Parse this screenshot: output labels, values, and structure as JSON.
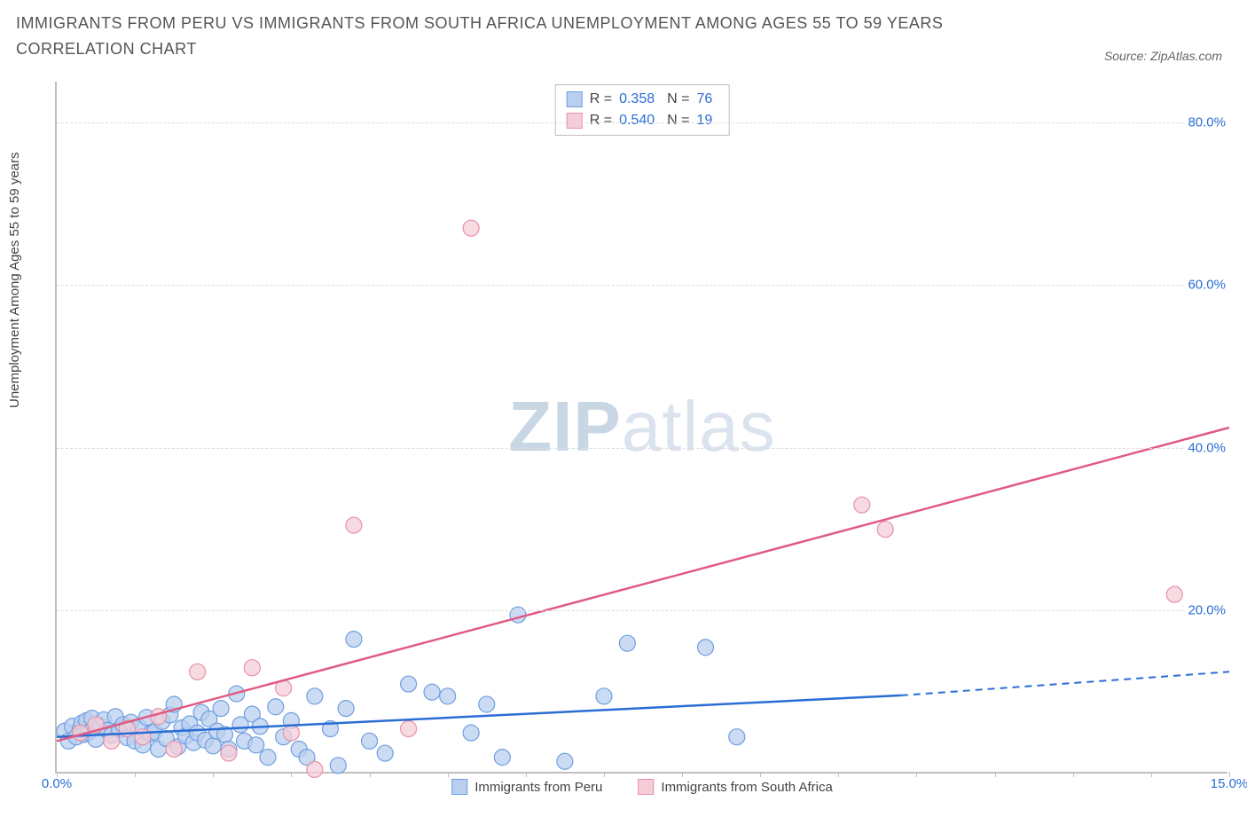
{
  "title": "IMMIGRANTS FROM PERU VS IMMIGRANTS FROM SOUTH AFRICA UNEMPLOYMENT AMONG AGES 55 TO 59 YEARS CORRELATION CHART",
  "source": "Source: ZipAtlas.com",
  "y_axis_label": "Unemployment Among Ages 55 to 59 years",
  "watermark_bold": "ZIP",
  "watermark_light": "atlas",
  "chart": {
    "type": "scatter",
    "xlim": [
      0,
      15
    ],
    "ylim": [
      0,
      85
    ],
    "x_ticks": [
      0,
      5,
      10,
      15
    ],
    "x_tick_labels": [
      "0.0%",
      "",
      "",
      "15.0%"
    ],
    "y_grid": [
      20,
      40,
      60,
      80
    ],
    "y_tick_labels": [
      "20.0%",
      "40.0%",
      "60.0%",
      "80.0%"
    ],
    "background_color": "#ffffff",
    "grid_color": "#dcdcdc",
    "axis_color": "#bfbfbf",
    "series": [
      {
        "name": "Immigrants from Peru",
        "color_fill": "#b9cfef",
        "color_stroke": "#6f9fe0",
        "line_color": "#2a6dd4",
        "marker_radius": 9,
        "r_value": "0.358",
        "n_value": "76",
        "trend": {
          "x1": 0,
          "y1": 4.5,
          "x2": 10.8,
          "y2": 9.6,
          "dash_from_x": 10.8,
          "x3": 15,
          "y3": 12.5
        },
        "points": [
          [
            0.1,
            5.2
          ],
          [
            0.15,
            4.0
          ],
          [
            0.2,
            5.8
          ],
          [
            0.25,
            4.5
          ],
          [
            0.3,
            5.5
          ],
          [
            0.32,
            6.2
          ],
          [
            0.35,
            4.8
          ],
          [
            0.38,
            6.5
          ],
          [
            0.4,
            5.0
          ],
          [
            0.45,
            6.8
          ],
          [
            0.5,
            4.2
          ],
          [
            0.55,
            5.9
          ],
          [
            0.6,
            6.6
          ],
          [
            0.65,
            5.3
          ],
          [
            0.7,
            4.7
          ],
          [
            0.75,
            7.0
          ],
          [
            0.8,
            5.4
          ],
          [
            0.85,
            6.0
          ],
          [
            0.9,
            4.4
          ],
          [
            0.95,
            6.3
          ],
          [
            1.0,
            4.0
          ],
          [
            1.05,
            5.7
          ],
          [
            1.1,
            3.5
          ],
          [
            1.15,
            6.9
          ],
          [
            1.2,
            4.9
          ],
          [
            1.25,
            5.1
          ],
          [
            1.3,
            3.0
          ],
          [
            1.35,
            6.4
          ],
          [
            1.4,
            4.3
          ],
          [
            1.45,
            7.2
          ],
          [
            1.5,
            8.5
          ],
          [
            1.55,
            3.3
          ],
          [
            1.6,
            5.6
          ],
          [
            1.65,
            4.6
          ],
          [
            1.7,
            6.1
          ],
          [
            1.75,
            3.8
          ],
          [
            1.8,
            5.0
          ],
          [
            1.85,
            7.5
          ],
          [
            1.9,
            4.1
          ],
          [
            1.95,
            6.7
          ],
          [
            2.0,
            3.4
          ],
          [
            2.05,
            5.2
          ],
          [
            2.1,
            8.0
          ],
          [
            2.15,
            4.8
          ],
          [
            2.2,
            3.0
          ],
          [
            2.3,
            9.8
          ],
          [
            2.35,
            6.0
          ],
          [
            2.4,
            4.0
          ],
          [
            2.5,
            7.3
          ],
          [
            2.55,
            3.5
          ],
          [
            2.6,
            5.8
          ],
          [
            2.7,
            2.0
          ],
          [
            2.8,
            8.2
          ],
          [
            2.9,
            4.5
          ],
          [
            3.0,
            6.5
          ],
          [
            3.1,
            3.0
          ],
          [
            3.2,
            2.0
          ],
          [
            3.3,
            9.5
          ],
          [
            3.5,
            5.5
          ],
          [
            3.6,
            1.0
          ],
          [
            3.7,
            8.0
          ],
          [
            3.8,
            16.5
          ],
          [
            4.0,
            4.0
          ],
          [
            4.2,
            2.5
          ],
          [
            4.5,
            11.0
          ],
          [
            4.8,
            10.0
          ],
          [
            5.0,
            9.5
          ],
          [
            5.3,
            5.0
          ],
          [
            5.5,
            8.5
          ],
          [
            5.7,
            2.0
          ],
          [
            5.9,
            19.5
          ],
          [
            6.5,
            1.5
          ],
          [
            7.0,
            9.5
          ],
          [
            7.3,
            16.0
          ],
          [
            8.3,
            15.5
          ],
          [
            8.7,
            4.5
          ]
        ]
      },
      {
        "name": "Immigrants from South Africa",
        "color_fill": "#f5cdd8",
        "color_stroke": "#e890a8",
        "line_color": "#e05a85",
        "marker_radius": 9,
        "r_value": "0.540",
        "n_value": "19",
        "trend": {
          "x1": 0,
          "y1": 4.0,
          "x2": 15,
          "y2": 42.5
        },
        "points": [
          [
            0.3,
            5.0
          ],
          [
            0.5,
            6.0
          ],
          [
            0.7,
            4.0
          ],
          [
            0.9,
            5.5
          ],
          [
            1.1,
            4.5
          ],
          [
            1.3,
            7.0
          ],
          [
            1.5,
            3.0
          ],
          [
            1.8,
            12.5
          ],
          [
            2.2,
            2.5
          ],
          [
            2.5,
            13.0
          ],
          [
            2.9,
            10.5
          ],
          [
            3.0,
            5.0
          ],
          [
            3.3,
            0.5
          ],
          [
            3.8,
            30.5
          ],
          [
            4.5,
            5.5
          ],
          [
            5.3,
            67.0
          ],
          [
            10.3,
            33.0
          ],
          [
            10.6,
            30.0
          ],
          [
            14.3,
            22.0
          ]
        ]
      }
    ],
    "legend_labels": {
      "r": "R =",
      "n": "N ="
    },
    "bottom_legend": [
      "Immigrants from Peru",
      "Immigrants from South Africa"
    ]
  }
}
